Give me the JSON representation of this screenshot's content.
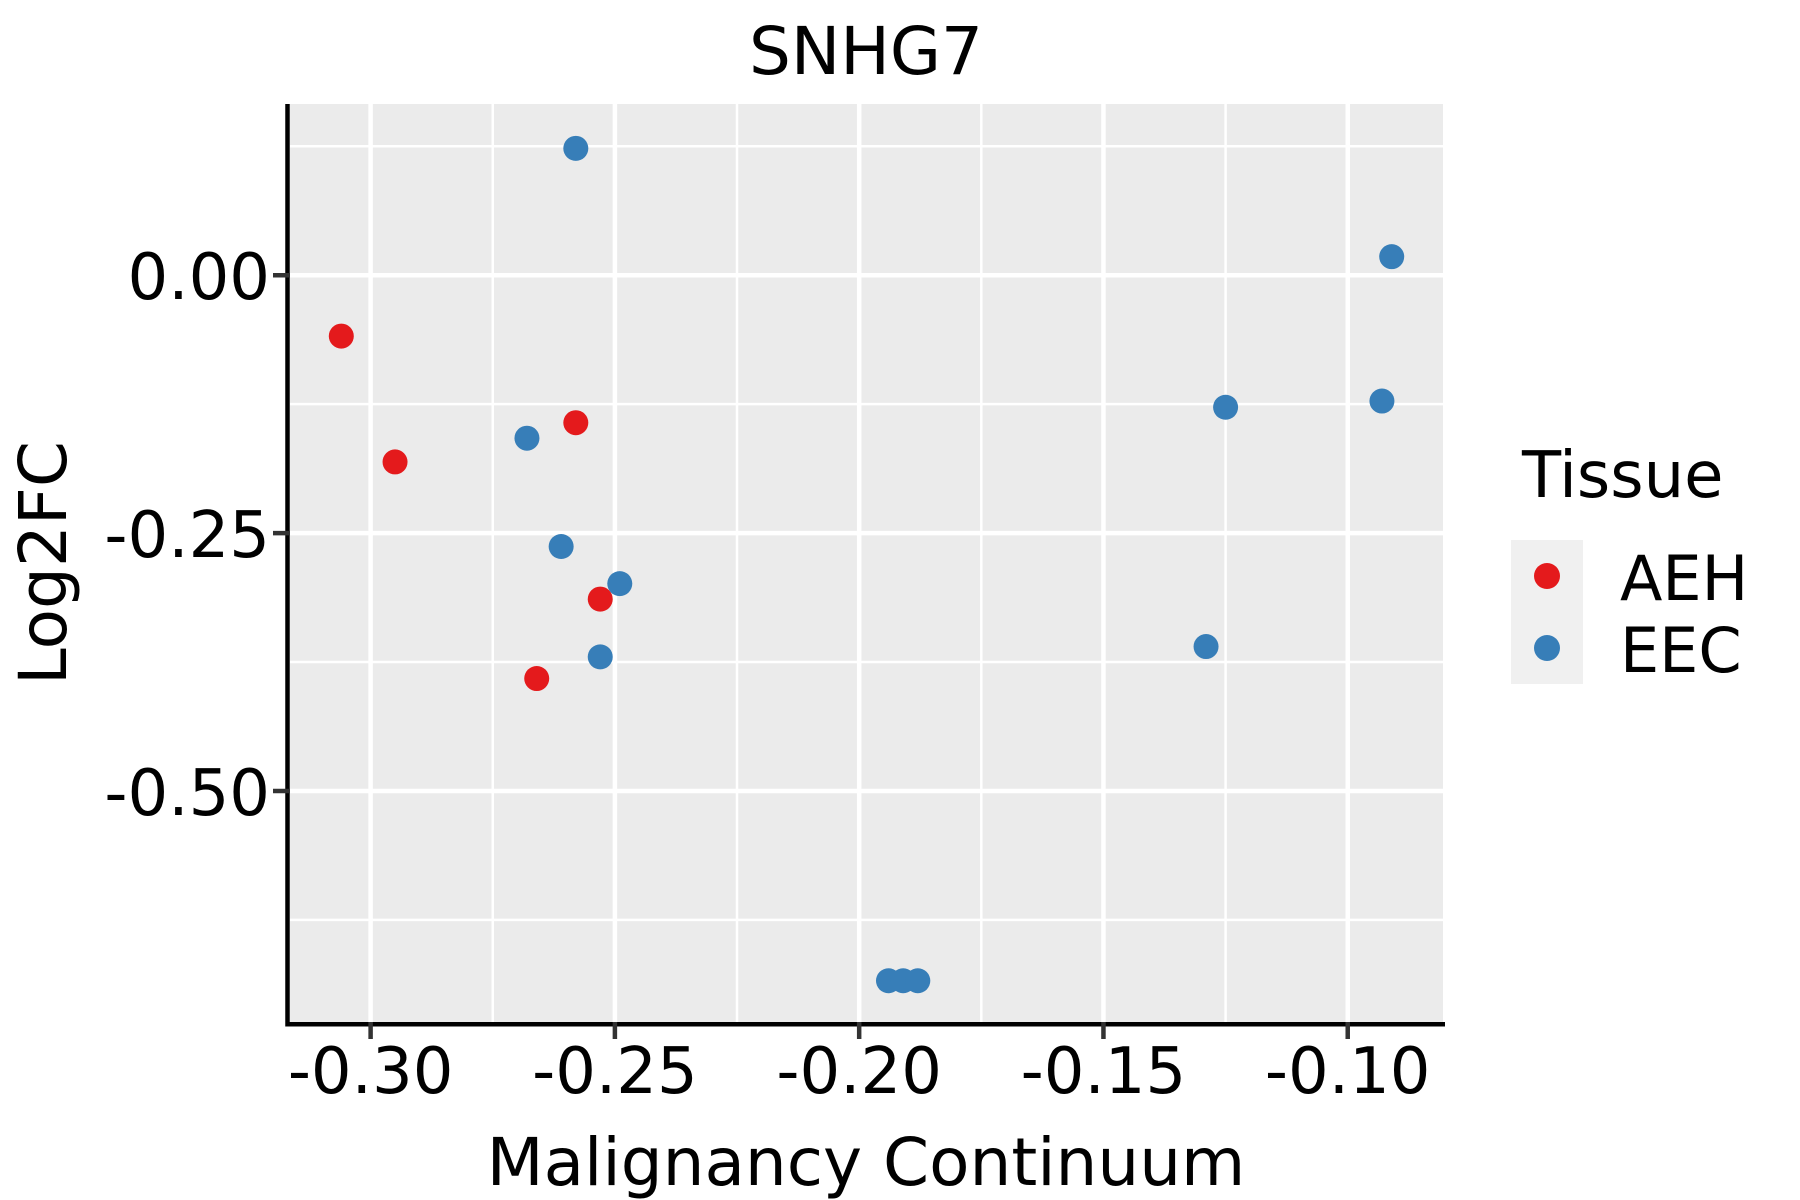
{
  "chart_data": {
    "type": "scatter",
    "title": "SNHG7",
    "xlabel": "Malignancy Continuum",
    "ylabel": "Log2FC",
    "xlim": [
      -0.3165,
      -0.0805
    ],
    "ylim": [
      -0.724,
      0.166
    ],
    "x_ticks": [
      -0.3,
      -0.25,
      -0.2,
      -0.15,
      -0.1
    ],
    "x_tick_labels": [
      "-0.30",
      "-0.25",
      "-0.20",
      "-0.15",
      "-0.10"
    ],
    "x_minor_gridlines": [
      -0.275,
      -0.225,
      -0.175,
      -0.125
    ],
    "y_ticks": [
      0.0,
      -0.25,
      -0.5
    ],
    "y_tick_labels": [
      "0.00",
      "-0.25",
      "-0.50"
    ],
    "y_minor_gridlines": [
      0.125,
      -0.125,
      -0.375,
      -0.625
    ],
    "grid": true,
    "legend_title": "Tissue",
    "legend_position": "right",
    "series": [
      {
        "name": "AEH",
        "color": "#E41A1C",
        "points": [
          [
            -0.306,
            -0.059
          ],
          [
            -0.295,
            -0.181
          ],
          [
            -0.258,
            -0.143
          ],
          [
            -0.253,
            -0.314
          ],
          [
            -0.266,
            -0.391
          ]
        ]
      },
      {
        "name": "EEC",
        "color": "#377EB8",
        "points": [
          [
            -0.258,
            0.123
          ],
          [
            -0.268,
            -0.158
          ],
          [
            -0.261,
            -0.263
          ],
          [
            -0.249,
            -0.299
          ],
          [
            -0.253,
            -0.37
          ],
          [
            -0.194,
            -0.684
          ],
          [
            -0.191,
            -0.684
          ],
          [
            -0.188,
            -0.684
          ],
          [
            -0.129,
            -0.36
          ],
          [
            -0.125,
            -0.128
          ],
          [
            -0.093,
            -0.122
          ],
          [
            -0.091,
            0.018
          ]
        ]
      }
    ],
    "colors": {
      "panel_bg": "#EBEBEB",
      "grid": "#FFFFFF",
      "axis_line": "#000000",
      "tick_mark": "#333333",
      "text": "#000000",
      "legend_key_bg": "#F0F0F0"
    }
  }
}
